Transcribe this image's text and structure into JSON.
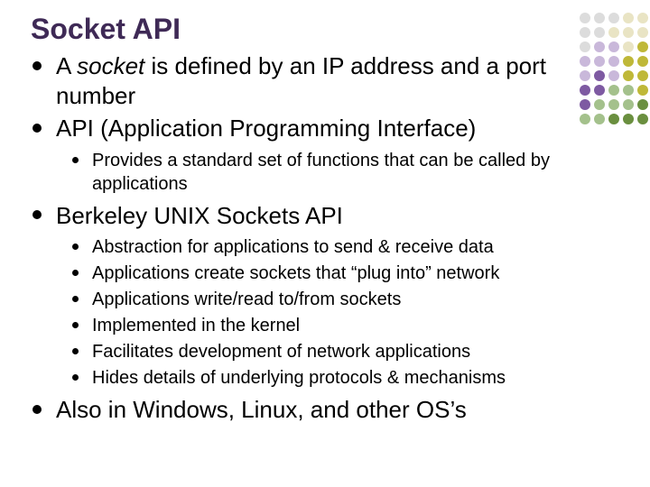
{
  "title": "Socket API",
  "title_color": "#3f2a56",
  "background_color": "#ffffff",
  "text_color": "#000000",
  "bullet_color": "#000000",
  "font_family": "Arial",
  "title_fontsize": 32,
  "level1_fontsize": 26,
  "level2_fontsize": 20,
  "bullets": [
    {
      "runs": [
        {
          "text": "A "
        },
        {
          "text": "socket",
          "italic": true
        },
        {
          "text": " is defined by an IP address and a port number"
        }
      ]
    },
    {
      "text": "API (Application Programming Interface)",
      "sub": [
        {
          "text": "Provides a standard set of functions that can be called by applications"
        }
      ]
    },
    {
      "text": "Berkeley UNIX Sockets API",
      "sub": [
        {
          "text": "Abstraction for applications to send & receive data"
        },
        {
          "text": "Applications create sockets that “plug into” network"
        },
        {
          "text": "Applications write/read to/from sockets"
        },
        {
          "text": "Implemented in the kernel"
        },
        {
          "text": "Facilitates development of network applications"
        },
        {
          "text": "Hides details of underlying protocols & mechanisms"
        }
      ]
    },
    {
      "text": "Also in Windows, Linux, and other OS’s"
    }
  ],
  "decoration": {
    "rows": 8,
    "cols": 5,
    "colors": [
      "#dcdcdc",
      "#dcdcdc",
      "#dcdcdc",
      "#e9e4c4",
      "#e9e4c4",
      "#dcdcdc",
      "#dcdcdc",
      "#e9e4c4",
      "#e9e4c4",
      "#e9e4c4",
      "#dcdcdc",
      "#c9b8da",
      "#c9b8da",
      "#e9e4c4",
      "#bfb838",
      "#c9b8da",
      "#c9b8da",
      "#c9b8da",
      "#bfb838",
      "#bfb838",
      "#c9b8da",
      "#7e5aa2",
      "#c9b8da",
      "#bfb838",
      "#bfb838",
      "#7e5aa2",
      "#7e5aa2",
      "#a4c18c",
      "#a4c18c",
      "#bfb838",
      "#7e5aa2",
      "#a4c18c",
      "#a4c18c",
      "#a4c18c",
      "#6a8f3f",
      "#a4c18c",
      "#a4c18c",
      "#6a8f3f",
      "#6a8f3f",
      "#6a8f3f"
    ]
  }
}
